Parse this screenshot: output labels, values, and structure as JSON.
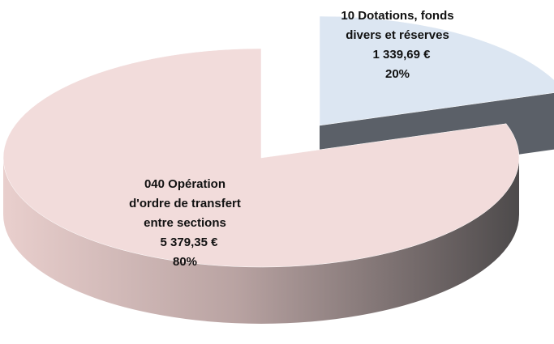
{
  "chart_data": {
    "type": "pie3d",
    "categories": [
      [
        "10 Dotations,  fonds",
        "divers et réserves"
      ],
      [
        "040 Opération",
        "d'ordre de transfert",
        "entre sections"
      ]
    ],
    "values": [
      1339.69,
      5379.35
    ],
    "value_labels": [
      "1 339,69 €",
      "5 379,35 €"
    ],
    "percent_labels": [
      "20%",
      "80%"
    ],
    "colors": [
      "#dce6f2",
      "#f2dcdb"
    ]
  }
}
